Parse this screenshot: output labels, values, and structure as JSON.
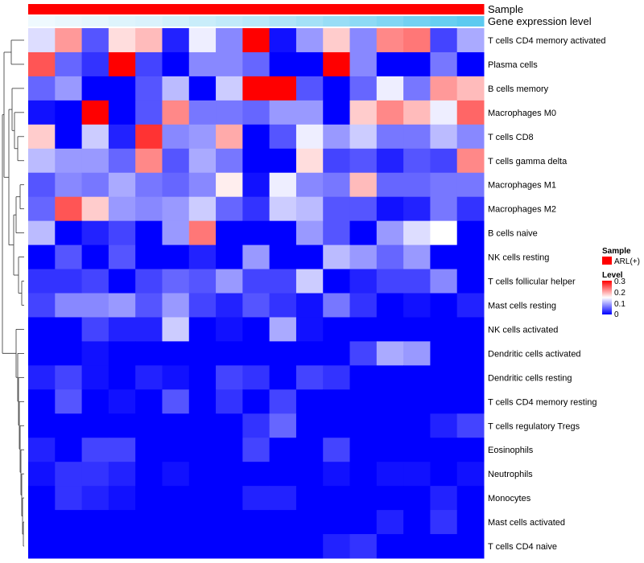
{
  "chart_data": {
    "type": "heatmap",
    "annotations": {
      "sample": {
        "label": "Sample",
        "legend_entries": [
          {
            "name": "ARL(+)",
            "color": "#ff0000"
          }
        ]
      },
      "gene_expression": {
        "label": "Gene expression level",
        "values": [
          0.02,
          0.05,
          0.08,
          0.12,
          0.15,
          0.2,
          0.25,
          0.3,
          0.35,
          0.42,
          0.48,
          0.55,
          0.62,
          0.7,
          0.78,
          0.85,
          0.92
        ]
      }
    },
    "legend": {
      "title": "Level",
      "ticks": [
        "0.3",
        "0.2",
        "0.1",
        "0"
      ],
      "range": [
        0,
        0.3
      ]
    },
    "rows": [
      "T cells CD4 memory activated",
      "Plasma cells",
      "B cells memory",
      "Macrophages M0",
      "T cells CD8",
      "T cells gamma delta",
      "Macrophages M1",
      "Macrophages M2",
      "B cells naive",
      "NK cells resting",
      "T cells follicular helper",
      "Mast cells resting",
      "NK cells activated",
      "Dendritic cells activated",
      "Dendritic cells resting",
      "T cells CD4 memory resting",
      "T cells regulatory  Tregs",
      "Eosinophils",
      "Neutrophils",
      "Monocytes",
      "Mast cells activated",
      "T cells CD4 naive"
    ],
    "values": [
      [
        0.13,
        0.21,
        0.05,
        0.17,
        0.19,
        0.02,
        0.14,
        0.08,
        0.3,
        0.01,
        0.09,
        0.18,
        0.08,
        0.22,
        0.23,
        0.04,
        0.1
      ],
      [
        0.25,
        0.06,
        0.03,
        0.3,
        0.04,
        0.0,
        0.08,
        0.08,
        0.06,
        0.0,
        0.0,
        0.3,
        0.08,
        0.0,
        0.0,
        0.07,
        0.0
      ],
      [
        0.06,
        0.09,
        0.0,
        0.0,
        0.05,
        0.11,
        0.0,
        0.12,
        0.3,
        0.3,
        0.05,
        0.0,
        0.06,
        0.14,
        0.07,
        0.21,
        0.19
      ],
      [
        0.01,
        0.0,
        0.3,
        0.0,
        0.05,
        0.22,
        0.07,
        0.07,
        0.06,
        0.09,
        0.09,
        0.0,
        0.18,
        0.22,
        0.19,
        0.14,
        0.24
      ],
      [
        0.18,
        0.0,
        0.12,
        0.02,
        0.27,
        0.08,
        0.09,
        0.2,
        0.0,
        0.05,
        0.14,
        0.09,
        0.12,
        0.07,
        0.07,
        0.11,
        0.08
      ],
      [
        0.11,
        0.09,
        0.09,
        0.06,
        0.22,
        0.05,
        0.1,
        0.07,
        0.0,
        0.0,
        0.17,
        0.04,
        0.05,
        0.02,
        0.05,
        0.04,
        0.22
      ],
      [
        0.05,
        0.08,
        0.07,
        0.1,
        0.07,
        0.06,
        0.08,
        0.16,
        0.01,
        0.14,
        0.08,
        0.07,
        0.19,
        0.06,
        0.06,
        0.07,
        0.07
      ],
      [
        0.06,
        0.25,
        0.18,
        0.09,
        0.08,
        0.09,
        0.12,
        0.06,
        0.03,
        0.12,
        0.11,
        0.05,
        0.05,
        0.01,
        0.02,
        0.07,
        0.03
      ],
      [
        0.11,
        0.0,
        0.02,
        0.04,
        0.0,
        0.09,
        0.23,
        0.0,
        0.0,
        0.0,
        0.09,
        0.05,
        0.0,
        0.09,
        0.13,
        0.15,
        0.0
      ],
      [
        0.0,
        0.05,
        0.0,
        0.05,
        0.0,
        0.0,
        0.02,
        0.0,
        0.09,
        0.0,
        0.0,
        0.11,
        0.09,
        0.06,
        0.09,
        0.0,
        0.0
      ],
      [
        0.03,
        0.03,
        0.04,
        0.0,
        0.04,
        0.06,
        0.05,
        0.09,
        0.04,
        0.04,
        0.12,
        0.0,
        0.02,
        0.04,
        0.04,
        0.08,
        0.0
      ],
      [
        0.04,
        0.08,
        0.08,
        0.09,
        0.05,
        0.09,
        0.04,
        0.02,
        0.05,
        0.03,
        0.01,
        0.07,
        0.03,
        0.0,
        0.01,
        0.0,
        0.02
      ],
      [
        0.0,
        0.0,
        0.04,
        0.02,
        0.02,
        0.12,
        0.0,
        0.01,
        0.0,
        0.1,
        0.01,
        0.0,
        0.0,
        0.0,
        0.0,
        0.0,
        0.0
      ],
      [
        0.0,
        0.0,
        0.01,
        0.0,
        0.0,
        0.0,
        0.0,
        0.0,
        0.0,
        0.0,
        0.0,
        0.0,
        0.04,
        0.1,
        0.09,
        0.0,
        0.0
      ],
      [
        0.02,
        0.04,
        0.01,
        0.0,
        0.02,
        0.01,
        0.0,
        0.04,
        0.03,
        0.0,
        0.04,
        0.03,
        0.0,
        0.0,
        0.0,
        0.0,
        0.0
      ],
      [
        0.0,
        0.05,
        0.0,
        0.01,
        0.0,
        0.05,
        0.0,
        0.03,
        0.0,
        0.04,
        0.0,
        0.0,
        0.0,
        0.0,
        0.0,
        0.0,
        0.0
      ],
      [
        0.0,
        0.0,
        0.0,
        0.0,
        0.0,
        0.0,
        0.0,
        0.0,
        0.03,
        0.06,
        0.0,
        0.0,
        0.0,
        0.0,
        0.0,
        0.02,
        0.04
      ],
      [
        0.02,
        0.0,
        0.04,
        0.04,
        0.0,
        0.0,
        0.0,
        0.0,
        0.04,
        0.0,
        0.0,
        0.04,
        0.0,
        0.0,
        0.0,
        0.0,
        0.0
      ],
      [
        0.01,
        0.03,
        0.03,
        0.02,
        0.0,
        0.01,
        0.0,
        0.0,
        0.0,
        0.0,
        0.0,
        0.01,
        0.0,
        0.01,
        0.01,
        0.0,
        0.01
      ],
      [
        0.0,
        0.03,
        0.02,
        0.01,
        0.0,
        0.0,
        0.0,
        0.0,
        0.02,
        0.02,
        0.0,
        0.0,
        0.0,
        0.0,
        0.0,
        0.02,
        0.0
      ],
      [
        0.0,
        0.0,
        0.0,
        0.0,
        0.0,
        0.0,
        0.0,
        0.0,
        0.0,
        0.0,
        0.0,
        0.0,
        0.0,
        0.02,
        0.0,
        0.03,
        0.0
      ],
      [
        0.0,
        0.0,
        0.0,
        0.0,
        0.0,
        0.0,
        0.0,
        0.0,
        0.0,
        0.0,
        0.0,
        0.02,
        0.03,
        0.0,
        0.0,
        0.0,
        0.0
      ]
    ],
    "colors": {
      "low": "#0000ff",
      "mid": "#ffffff",
      "high": "#ff0000",
      "sample": "#ff0000",
      "expr_low": "#f2fafe",
      "expr_high": "#4fc6ef"
    }
  }
}
